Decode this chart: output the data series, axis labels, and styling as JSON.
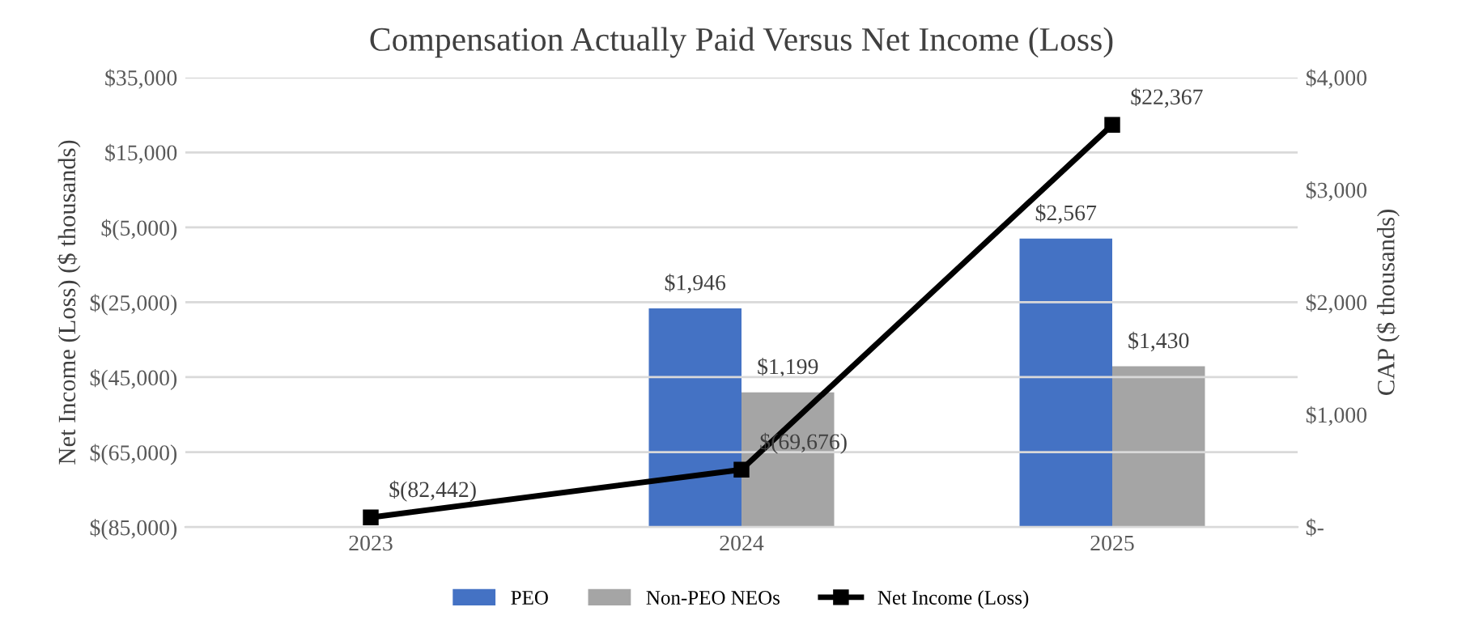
{
  "chart_data": {
    "type": "bar",
    "title": "Compensation Actually Paid Versus Net Income (Loss)",
    "categories": [
      "2023",
      "2024",
      "2025"
    ],
    "ylabel": "Net Income (Loss) ($ thousands)",
    "y2label": "CAP ($ thousands)",
    "series": [
      {
        "name": "PEO",
        "axis": "y2",
        "color": "#4472c4",
        "values": [
          null,
          1946,
          2567
        ],
        "value_labels": [
          null,
          "$1,946",
          "$2,567"
        ]
      },
      {
        "name": "Non-PEO NEOs",
        "axis": "y2",
        "color": "#a5a5a5",
        "values": [
          null,
          1199,
          1430
        ],
        "value_labels": [
          null,
          "$1,199",
          "$1,430"
        ]
      },
      {
        "name": "Net Income (Loss)",
        "type": "line",
        "axis": "y",
        "color": "#000000",
        "marker": "square",
        "line_style": "solid",
        "values": [
          -82442,
          -69676,
          22367
        ],
        "value_labels": [
          "$(82,442)",
          "$(69,676)",
          "$22,367"
        ]
      }
    ],
    "ylim": [
      -85000,
      35000
    ],
    "yticks": [
      {
        "value": -85000,
        "label": "$(85,000)"
      },
      {
        "value": -65000,
        "label": "$(65,000)"
      },
      {
        "value": -45000,
        "label": "$(45,000)"
      },
      {
        "value": -25000,
        "label": "$(25,000)"
      },
      {
        "value": -5000,
        "label": "$(5,000)"
      },
      {
        "value": 15000,
        "label": "$15,000"
      },
      {
        "value": 35000,
        "label": "$35,000"
      }
    ],
    "y2lim": [
      0,
      4000
    ],
    "y2ticks": [
      {
        "value": 0,
        "label": "$-"
      },
      {
        "value": 1000,
        "label": "$1,000"
      },
      {
        "value": 2000,
        "label": "$2,000"
      },
      {
        "value": 3000,
        "label": "$3,000"
      },
      {
        "value": 4000,
        "label": "$4,000"
      }
    ],
    "grid": "y",
    "legend": "bottom"
  }
}
